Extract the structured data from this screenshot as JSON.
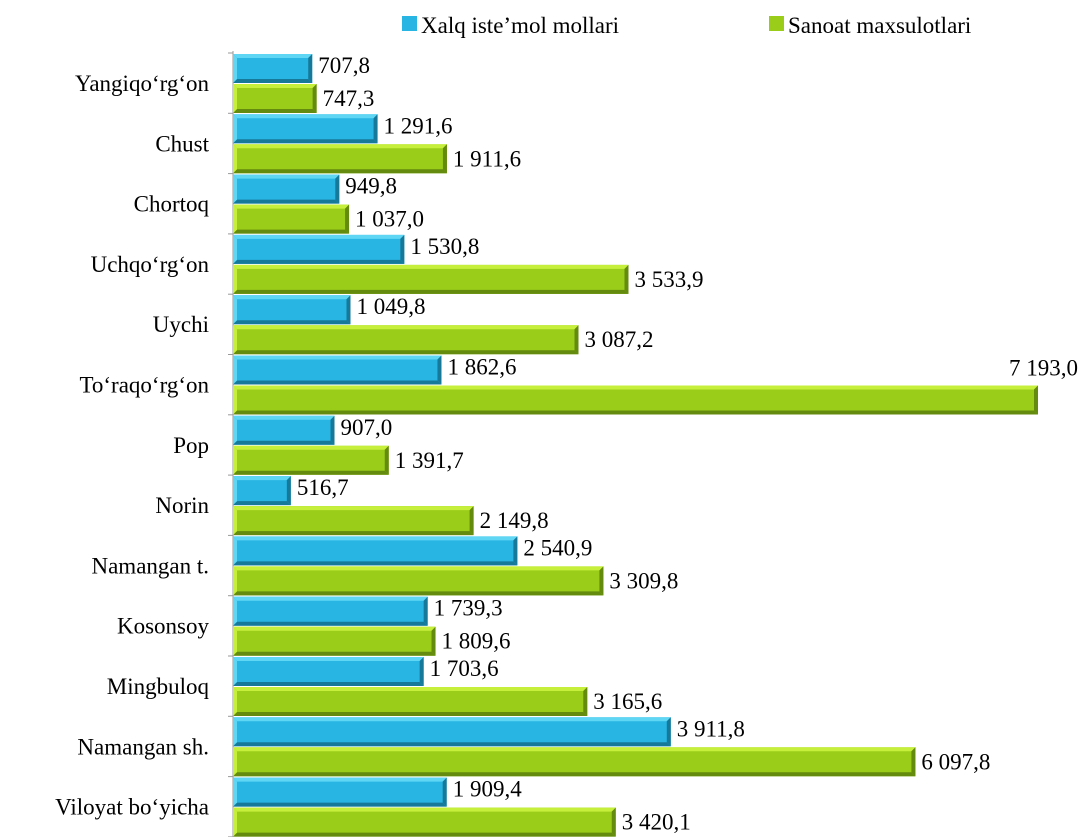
{
  "colors": {
    "series1_top": "#5fd6f4",
    "series1_front": "#29b5e3",
    "series1_dark": "#17799a",
    "series2_top": "#c6ef3c",
    "series2_front": "#9acd1a",
    "series2_dark": "#648a0e",
    "axis": "#999999"
  },
  "chart_data": {
    "type": "bar",
    "orientation": "horizontal",
    "style": "3d-beveled",
    "categories": [
      "Yangiqo‘rg‘on",
      "Chust",
      "Chortoq",
      "Uchqo‘rg‘on",
      "Uychi",
      "To‘raqo‘rg‘on",
      "Pop",
      "Norin",
      "Namangan t.",
      "Kosonsoy",
      "Mingbuloq",
      "Namangan sh.",
      "Viloyat bo‘yicha"
    ],
    "series": [
      {
        "name": "Xalq iste’mol mollari",
        "values": [
          707.8,
          1291.6,
          949.8,
          1530.8,
          1049.8,
          1862.6,
          907.0,
          516.7,
          2540.9,
          1739.3,
          1703.6,
          3911.8,
          1909.4
        ],
        "labels": [
          "707,8",
          "1 291,6",
          "949,8",
          "1 530,8",
          "1 049,8",
          "1 862,6",
          "907,0",
          "516,7",
          "2 540,9",
          "1 739,3",
          "1 703,6",
          "3 911,8",
          "1 909,4"
        ]
      },
      {
        "name": "Sanoat maxsulotlari",
        "values": [
          747.3,
          1911.6,
          1037.0,
          3533.9,
          3087.2,
          7193.0,
          1391.7,
          2149.8,
          3309.8,
          1809.6,
          3165.6,
          6097.8,
          3420.1
        ],
        "labels": [
          "747,3",
          "1 911,6",
          "1 037,0",
          "3 533,9",
          "3 087,2",
          "7 193,0",
          "1 391,7",
          "2 149,8",
          "3 309,8",
          "1 809,6",
          "3 165,6",
          "6 097,8",
          "3 420,1"
        ]
      }
    ],
    "xlim": [
      0,
      7300
    ],
    "legend_position": "top",
    "grid": false,
    "xlabel": "",
    "ylabel": ""
  }
}
